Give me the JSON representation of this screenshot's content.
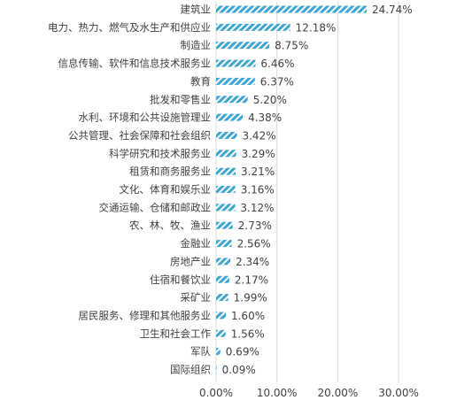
{
  "chart_data": {
    "type": "bar",
    "orientation": "horizontal",
    "categories": [
      "建筑业",
      "电力、热力、燃气及水生产和供应业",
      "制造业",
      "信息传输、软件和信息技术服务业",
      "教育",
      "批发和零售业",
      "水利、环境和公共设施管理业",
      "公共管理、社会保障和社会组织",
      "科学研究和技术服务业",
      "租赁和商务服务业",
      "文化、体育和娱乐业",
      "交通运输、仓储和邮政业",
      "农、林、牧、渔业",
      "金融业",
      "房地产业",
      "住宿和餐饮业",
      "采矿业",
      "居民服务、修理和其他服务业",
      "卫生和社会工作",
      "军队",
      "国际组织"
    ],
    "values": [
      24.74,
      12.18,
      8.75,
      6.46,
      6.37,
      5.2,
      4.38,
      3.42,
      3.29,
      3.21,
      3.16,
      3.12,
      2.73,
      2.56,
      2.34,
      2.17,
      1.99,
      1.6,
      1.56,
      0.69,
      0.09
    ],
    "value_labels": [
      "24.74%",
      "12.18%",
      "8.75%",
      "6.46%",
      "6.37%",
      "5.20%",
      "4.38%",
      "3.42%",
      "3.29%",
      "3.21%",
      "3.16%",
      "3.12%",
      "2.73%",
      "2.56%",
      "2.34%",
      "2.17%",
      "1.99%",
      "1.60%",
      "1.56%",
      "0.69%",
      "0.09%"
    ],
    "xlim": [
      0,
      30
    ],
    "x_ticks": [
      0,
      10,
      20,
      30
    ],
    "x_tick_labels": [
      "0.00%",
      "10.00%",
      "20.00%",
      "30.00%"
    ],
    "title": "",
    "xlabel": "",
    "ylabel": "",
    "grid": "vertical",
    "legend": "none",
    "colors": {
      "bar_stripe": "#3ba5d6",
      "bar_background": "#ffffff",
      "gridline": "#d9d9d9",
      "text": "#404040"
    }
  }
}
